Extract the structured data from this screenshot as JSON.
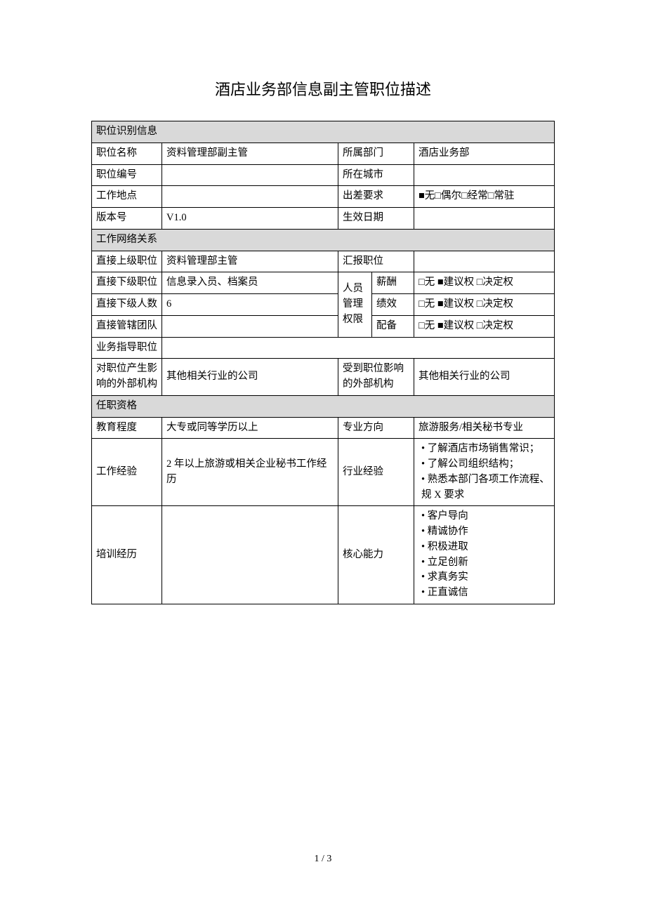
{
  "document": {
    "title": "酒店业务部信息副主管职位描述",
    "page_number": "1 / 3"
  },
  "sections": {
    "identification": {
      "header": "职位识别信息",
      "position_name_label": "职位名称",
      "position_name_value": "资料管理部副主管",
      "department_label": "所属部门",
      "department_value": "酒店业务部",
      "position_code_label": "职位编号",
      "position_code_value": "",
      "city_label": "所在城市",
      "city_value": "",
      "work_location_label": "工作地点",
      "work_location_value": "",
      "travel_label": "出差要求",
      "travel_value": "■无□偶尔□经常□常驻",
      "version_label": "版本号",
      "version_value": "V1.0",
      "effective_date_label": "生效日期",
      "effective_date_value": ""
    },
    "network": {
      "header": "工作网络关系",
      "superior_label": "直接上级职位",
      "superior_value": "资料管理部主管",
      "report_label": "汇报职位",
      "report_value": "",
      "subordinate_label": "直接下级职位",
      "subordinate_value": "信息录入员、档案员",
      "authority_label": "人员管理权限",
      "salary_label": "薪酬",
      "salary_value": "□无 ■建议权 □决定权",
      "subordinate_count_label": "直接下级人数",
      "subordinate_count_value": "6",
      "performance_label": "绩效",
      "performance_value": "□无 ■建议权 □决定权",
      "team_label": "直接管辖团队",
      "team_value": "",
      "staffing_label": "配备",
      "staffing_value": "□无 ■建议权 □决定权",
      "guidance_label": "业务指导职位",
      "guidance_value": "",
      "external_influence_label": "对职位产生影响的外部机构",
      "external_influence_value": "其他相关行业的公司",
      "affected_external_label": "受到职位影响的外部机构",
      "affected_external_value": "其他相关行业的公司"
    },
    "qualification": {
      "header": "任职资格",
      "education_label": "教育程度",
      "education_value": "大专或同等学历以上",
      "major_label": "专业方向",
      "major_value": "旅游服务/相关秘书专业",
      "work_exp_label": "工作经验",
      "work_exp_value": "2 年以上旅游或相关企业秘书工作经历",
      "industry_exp_label": "行业经验",
      "industry_exp_items": [
        "了解酒店市场销售常识；",
        "了解公司组织结构；",
        "熟悉本部门各项工作流程、规 X 要求"
      ],
      "training_label": "培训经历",
      "training_value": "",
      "core_ability_label": "核心能力",
      "core_ability_items": [
        "客户导向",
        "精诚协作",
        "积极进取",
        "立足创新",
        "求真务实",
        "正直诚信"
      ]
    }
  }
}
